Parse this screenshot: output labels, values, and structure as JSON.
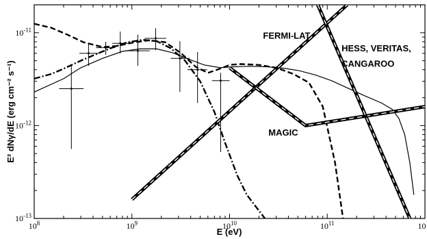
{
  "chart_data": {
    "type": "line",
    "title": "",
    "xlabel": "E (eV)",
    "ylabel": "E² dNγ/dE (erg cm⁻² s⁻¹)",
    "xscale": "log",
    "yscale": "log",
    "xlim": [
      100000000.0,
      1000000000000.0
    ],
    "ylim": [
      1e-13,
      2e-11
    ],
    "x_ticks": [
      {
        "value": 100000000.0,
        "base": "10",
        "exp": "8"
      },
      {
        "value": 1000000000.0,
        "base": "10",
        "exp": "9"
      },
      {
        "value": 10000000000.0,
        "base": "10",
        "exp": "10"
      },
      {
        "value": 100000000000.0,
        "base": "10",
        "exp": "11"
      },
      {
        "value": 1000000000000.0,
        "base": "10",
        "exp": "12"
      }
    ],
    "y_ticks": [
      {
        "value": 1e-13,
        "base": "10",
        "exp": "-13"
      },
      {
        "value": 1e-12,
        "base": "10",
        "exp": "-12"
      },
      {
        "value": 1e-11,
        "base": "10",
        "exp": "-11"
      }
    ],
    "grid": false,
    "annotations": [
      {
        "text": "FERMI-LAT",
        "x": 22000000000.0,
        "y": 8.6e-12
      },
      {
        "text": "HESS, VERITAS,",
        "x": 140000000000.0,
        "y": 6.3e-12
      },
      {
        "text": "CANGAROO",
        "x": 140000000000.0,
        "y": 4.3e-12
      },
      {
        "text": "MAGIC",
        "x": 25000000000.0,
        "y": 7.8e-13
      }
    ],
    "data_points": {
      "x": [
        240000000.0,
        360000000.0,
        540000000.0,
        760000000.0,
        1150000000.0,
        1750000000.0,
        3100000000.0,
        4700000000.0,
        8100000000.0
      ],
      "y": [
        2.5e-12,
        6e-12,
        6.9e-12,
        7.7e-12,
        6.4e-12,
        8.7e-12,
        5.3e-12,
        4e-12,
        3.05e-12
      ],
      "y_low": [
        5.6e-13,
        4.4e-12,
        5.8e-12,
        6e-12,
        4.4e-12,
        6.5e-12,
        2.3e-12,
        1.75e-12,
        5.2e-13
      ],
      "y_high": [
        4.4e-12,
        7.8e-12,
        8e-12,
        1.03e-11,
        9.5e-12,
        1.12e-11,
        8.1e-12,
        6.2e-12,
        3.7e-12
      ],
      "x_low": [
        180000000.0,
        290000000.0,
        430000000.0,
        630000000.0,
        860000000.0,
        1350000000.0,
        2500000000.0,
        3700000000.0,
        6600000000.0
      ],
      "x_high": [
        320000000.0,
        460000000.0,
        670000000.0,
        930000000.0,
        1520000000.0,
        2250000000.0,
        3900000000.0,
        5900000000.0,
        10000000000.0
      ]
    },
    "series": [
      {
        "style": "solid-thin",
        "x": [
          100000000.0,
          200000000.0,
          300000000.0,
          500000000.0,
          800000000.0,
          1200000000.0,
          1800000000.0,
          2600000000.0,
          3800000000.0,
          5500000000.0,
          8000000000.0,
          11000000000.0,
          16000000000.0,
          24000000000.0,
          36000000000.0,
          52000000000.0,
          76000000000.0,
          110000000000.0,
          160000000000.0,
          240000000000.0,
          360000000000.0,
          460000000000.0,
          540000000000.0,
          620000000000.0,
          700000000000.0,
          770000000000.0
        ],
        "y": [
          2.3e-12,
          3.2e-12,
          4.2e-12,
          5.3e-12,
          6.3e-12,
          6.7e-12,
          6.7e-12,
          6.1e-12,
          5.2e-12,
          4.5e-12,
          4.2e-12,
          4.3e-12,
          4.35e-12,
          4.3e-12,
          4.15e-12,
          3.9e-12,
          3.5e-12,
          3.05e-12,
          2.55e-12,
          2.1e-12,
          1.75e-12,
          1.5e-12,
          1.2e-12,
          8e-13,
          4e-13,
          1.8e-13
        ]
      },
      {
        "style": "dashed",
        "x": [
          100000000.0,
          150000000.0,
          220000000.0,
          320000000.0,
          500000000.0,
          700000000.0,
          1000000000.0,
          1500000000.0,
          2200000000.0,
          3200000000.0,
          4500000000.0,
          6000000000.0,
          8000000000.0,
          10000000000.0,
          13000000000.0,
          20000000000.0,
          30000000000.0,
          45000000000.0,
          65000000000.0,
          90000000000.0,
          120000000000.0,
          145000000000.0
        ],
        "y": [
          1.25e-11,
          1.13e-11,
          9.5e-12,
          7.9e-12,
          7e-12,
          7.2e-12,
          7.8e-12,
          8.3e-12,
          7.9e-12,
          6e-12,
          4.3e-12,
          3.7e-12,
          4.1e-12,
          4.5e-12,
          4.6e-12,
          4.5e-12,
          4.2e-12,
          3.6e-12,
          2.9e-12,
          1.6e-12,
          4e-13,
          1e-13
        ]
      },
      {
        "style": "dash-dot",
        "x": [
          100000000.0,
          150000000.0,
          200000000.0,
          300000000.0,
          450000000.0,
          650000000.0,
          900000000.0,
          1300000000.0,
          1800000000.0,
          2500000000.0,
          3500000000.0,
          5000000000.0,
          7000000000.0,
          9000000000.0,
          12000000000.0,
          15000000000.0,
          19000000000.0,
          23000000000.0
        ],
        "y": [
          3.2e-12,
          3.6e-12,
          4.1e-12,
          5e-12,
          6e-12,
          7e-12,
          7.9e-12,
          8.4e-12,
          8.1e-12,
          6.8e-12,
          5e-12,
          3e-12,
          1.4e-12,
          6.5e-13,
          2.9e-13,
          1.8e-13,
          1.3e-13,
          1e-13
        ]
      },
      {
        "style": "double-dashed",
        "x": [
          1000000000.0,
          160000000000.0
        ],
        "y": [
          1.6e-13,
          2e-11
        ]
      },
      {
        "style": "double-dashed",
        "x": [
          10000000000.0,
          60000000000.0,
          1000000000000.0
        ],
        "y": [
          4.2e-12,
          1e-12,
          1.6e-12
        ]
      },
      {
        "style": "double-dashed",
        "x": [
          80000000000.0,
          700000000000.0
        ],
        "y": [
          2e-11,
          1e-13
        ]
      }
    ]
  }
}
